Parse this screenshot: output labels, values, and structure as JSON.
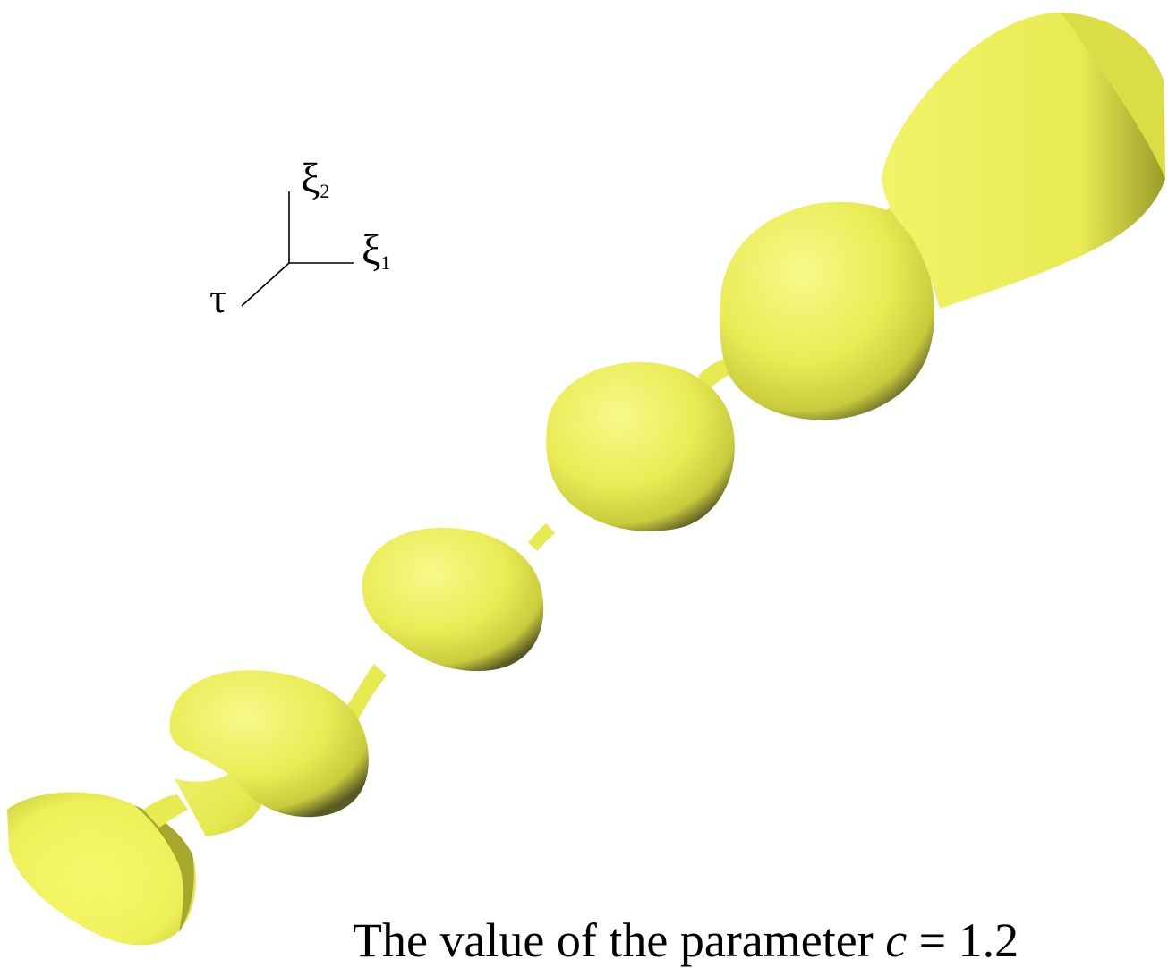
{
  "axes": {
    "xi2": {
      "symbol": "ξ",
      "index": "2"
    },
    "xi1": {
      "symbol": "ξ",
      "index": "1"
    },
    "tau": {
      "symbol": "τ"
    }
  },
  "caption": {
    "prefix": "The value of the parameter ",
    "variable": "c",
    "suffix": " = 1.2"
  },
  "colors": {
    "surface_light": "#f2f56a",
    "surface_mid": "#e4e84e",
    "surface_dark": "#3d3d1a",
    "background": "#ffffff"
  }
}
